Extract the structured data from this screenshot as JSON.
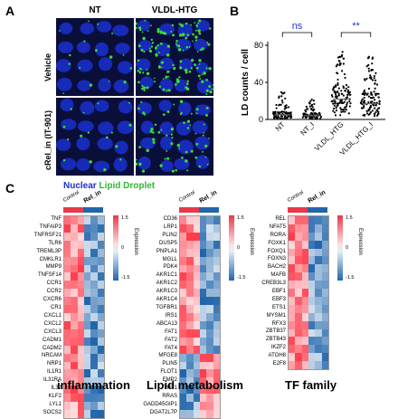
{
  "panel_a": {
    "label": "A",
    "col_nt": "NT",
    "col_vldl": "VLDL-HTG",
    "row_vehicle": "Vehicle",
    "row_crel": "cRel_in (IT-901)",
    "legend_nuclear": "Nuclear",
    "legend_ld": "Lipid Droplet",
    "colors": {
      "nuclear": "#1a2fcf",
      "ld": "#3adb3a"
    }
  },
  "panel_b": {
    "label": "B"
  },
  "chart_data": {
    "type": "scatter",
    "ylabel": "LD counts / cell",
    "ylim": [
      0,
      80
    ],
    "yticks": [
      "0",
      "40",
      "80"
    ],
    "categories": [
      "NT",
      "NT_I",
      "VLDL_HTG",
      "VLDL_HTG_I"
    ],
    "comparisons": [
      {
        "groups": [
          "NT",
          "NT_I"
        ],
        "label": "ns",
        "color": "#2233cc"
      },
      {
        "groups": [
          "VLDL_HTG",
          "VLDL_HTG_I"
        ],
        "label": "**",
        "color": "#2233cc"
      }
    ],
    "group_stats": [
      {
        "name": "NT",
        "median": 5,
        "max": 30,
        "n": 90
      },
      {
        "name": "NT_I",
        "median": 4,
        "max": 22,
        "n": 80
      },
      {
        "name": "VLDL_HTG",
        "median": 22,
        "max": 75,
        "n": 120
      },
      {
        "name": "VLDL_HTG_I",
        "median": 17,
        "max": 68,
        "n": 120
      }
    ]
  },
  "panel_c": {
    "label": "C",
    "group_control": "Control",
    "group_relin": "Rel_in",
    "scale_max": "1.5",
    "scale_0": "0",
    "scale_min": "-1.5",
    "scale_label": "Expression",
    "colors": {
      "control": "#e8394a",
      "relin": "#2166ac"
    },
    "heatmaps": [
      {
        "title": "inflammation",
        "genes": [
          "TNF",
          "TNFAIP3",
          "TNFRSF21",
          "TLR6",
          "TREML3P",
          "CMKLR1",
          "MMP9",
          "TNFSF14",
          "CCR1",
          "CCR2",
          "CXCR6",
          "CR1",
          "CXCL1",
          "CXCL2",
          "CXCL3",
          "CADM1",
          "CADM2",
          "NRCAM",
          "NRP1",
          "IL1R1",
          "IL31RA",
          "IL32",
          "KLF2",
          "LYL1",
          "SOCS2"
        ]
      },
      {
        "title": "Lipid metabolism",
        "genes": [
          "CD36",
          "LRP1",
          "PLIN2",
          "DUSP5",
          "PNPLA1",
          "MGLL",
          "PDK4",
          "AKR1C1",
          "AKR1C2",
          "AKR1C3",
          "AKR1C4",
          "TGFBR1",
          "IRS1",
          "ABCA13",
          "FAT1",
          "FAT2",
          "FAT4",
          "MFGE8",
          "PLIN5",
          "FLOT1",
          "EMP2",
          "THY1",
          "RRAS",
          "GADD45GIP1",
          "DGAT2L7P"
        ]
      },
      {
        "title": "TF family",
        "genes": [
          "REL",
          "NFAT5",
          "RORA",
          "FOXK1",
          "FOXQ1",
          "FOXN3",
          "BACH2",
          "MAFB",
          "CREB3L3",
          "EBF1",
          "EBF3",
          "ETS1",
          "MYSM1",
          "RFX3",
          "ZBTB37",
          "ZBTB43",
          "IKZF2",
          "ATOH8",
          "E2F8"
        ]
      }
    ]
  }
}
